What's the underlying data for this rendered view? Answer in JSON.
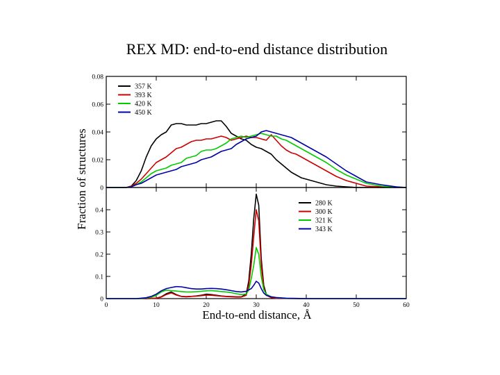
{
  "page": {
    "title": "REX MD: end-to-end distance distribution"
  },
  "chart_data": [
    {
      "type": "line",
      "xlabel": "End-to-end distance, Å",
      "ylabel": "Fraction of structures",
      "xlim": [
        0,
        60
      ],
      "ylim": [
        0,
        0.08
      ],
      "xticks": [
        "0",
        "10",
        "20",
        "30",
        "40",
        "50",
        "60"
      ],
      "yticks": [
        "0",
        "0.02",
        "0.04",
        "0.06",
        "0.08"
      ],
      "grid": false,
      "legend_position": "top-left",
      "series": [
        {
          "name": "357 K",
          "color": "#000000",
          "x": [
            0,
            4,
            5,
            6,
            7,
            8,
            9,
            10,
            11,
            12,
            13,
            14,
            15,
            16,
            17,
            18,
            19,
            20,
            21,
            22,
            23,
            24,
            25,
            26,
            27,
            28,
            29,
            30,
            31,
            32,
            33,
            34,
            35,
            36,
            37,
            38,
            39,
            40,
            42,
            44,
            46,
            48,
            50,
            55,
            60
          ],
          "y": [
            0,
            0,
            0.001,
            0.005,
            0.012,
            0.022,
            0.03,
            0.035,
            0.038,
            0.04,
            0.045,
            0.046,
            0.046,
            0.045,
            0.045,
            0.045,
            0.046,
            0.046,
            0.047,
            0.048,
            0.048,
            0.044,
            0.039,
            0.037,
            0.035,
            0.034,
            0.031,
            0.029,
            0.028,
            0.026,
            0.024,
            0.02,
            0.017,
            0.014,
            0.011,
            0.009,
            0.007,
            0.006,
            0.004,
            0.002,
            0.001,
            0.0005,
            0,
            0,
            0
          ]
        },
        {
          "name": "393 K",
          "color": "#cc0000",
          "x": [
            0,
            4,
            5,
            6,
            7,
            8,
            9,
            10,
            11,
            12,
            13,
            14,
            15,
            16,
            17,
            18,
            19,
            20,
            21,
            22,
            23,
            24,
            25,
            26,
            27,
            28,
            29,
            30,
            31,
            32,
            33,
            34,
            35,
            36,
            37,
            38,
            39,
            40,
            42,
            44,
            46,
            48,
            50,
            52,
            55,
            60
          ],
          "y": [
            0,
            0,
            0.001,
            0.003,
            0.006,
            0.01,
            0.014,
            0.018,
            0.02,
            0.022,
            0.025,
            0.028,
            0.029,
            0.031,
            0.033,
            0.034,
            0.034,
            0.035,
            0.035,
            0.036,
            0.037,
            0.036,
            0.034,
            0.035,
            0.036,
            0.037,
            0.036,
            0.036,
            0.035,
            0.034,
            0.038,
            0.034,
            0.03,
            0.027,
            0.025,
            0.024,
            0.022,
            0.02,
            0.016,
            0.012,
            0.008,
            0.005,
            0.003,
            0.001,
            0.0005,
            0
          ]
        },
        {
          "name": "420 K",
          "color": "#00cc00",
          "x": [
            0,
            4,
            5,
            6,
            7,
            8,
            9,
            10,
            11,
            12,
            13,
            14,
            15,
            16,
            17,
            18,
            19,
            20,
            21,
            22,
            23,
            24,
            25,
            26,
            27,
            28,
            29,
            30,
            31,
            32,
            33,
            34,
            35,
            36,
            37,
            38,
            39,
            40,
            42,
            44,
            46,
            48,
            50,
            52,
            55,
            58,
            60
          ],
          "y": [
            0,
            0,
            0.0005,
            0.002,
            0.004,
            0.007,
            0.01,
            0.012,
            0.013,
            0.014,
            0.016,
            0.017,
            0.018,
            0.021,
            0.022,
            0.023,
            0.026,
            0.027,
            0.027,
            0.028,
            0.03,
            0.032,
            0.035,
            0.036,
            0.037,
            0.036,
            0.037,
            0.038,
            0.039,
            0.038,
            0.037,
            0.037,
            0.035,
            0.034,
            0.032,
            0.03,
            0.028,
            0.026,
            0.022,
            0.018,
            0.013,
            0.009,
            0.006,
            0.003,
            0.001,
            0.0002,
            0
          ]
        },
        {
          "name": "450 K",
          "color": "#0000aa",
          "x": [
            0,
            4,
            5,
            6,
            7,
            8,
            9,
            10,
            11,
            12,
            13,
            14,
            15,
            16,
            17,
            18,
            19,
            20,
            21,
            22,
            23,
            24,
            25,
            26,
            27,
            28,
            29,
            30,
            31,
            32,
            33,
            34,
            35,
            36,
            37,
            38,
            39,
            40,
            42,
            44,
            46,
            48,
            50,
            52,
            55,
            58,
            60
          ],
          "y": [
            0,
            0,
            0.0005,
            0.002,
            0.003,
            0.005,
            0.007,
            0.009,
            0.01,
            0.011,
            0.012,
            0.013,
            0.015,
            0.016,
            0.017,
            0.018,
            0.02,
            0.021,
            0.022,
            0.024,
            0.026,
            0.027,
            0.028,
            0.031,
            0.033,
            0.035,
            0.036,
            0.037,
            0.04,
            0.041,
            0.04,
            0.039,
            0.038,
            0.037,
            0.036,
            0.034,
            0.032,
            0.03,
            0.026,
            0.022,
            0.017,
            0.012,
            0.008,
            0.004,
            0.002,
            0.0005,
            0
          ]
        }
      ]
    },
    {
      "type": "line",
      "xlabel": "End-to-end distance, Å",
      "ylabel": "Fraction of structures",
      "xlim": [
        0,
        60
      ],
      "ylim": [
        0,
        0.5
      ],
      "xticks": [
        "0",
        "10",
        "20",
        "30",
        "40",
        "50",
        "60"
      ],
      "yticks": [
        "0",
        "0.1",
        "0.2",
        "0.3",
        "0.4"
      ],
      "grid": false,
      "legend_position": "top-right",
      "series": [
        {
          "name": "280 K",
          "color": "#000000",
          "x": [
            0,
            8,
            10,
            11,
            12,
            13,
            14,
            15,
            16,
            17,
            18,
            19,
            20,
            21,
            22,
            23,
            24,
            25,
            26,
            27,
            28,
            28.5,
            29,
            29.5,
            30,
            30.5,
            31,
            31.5,
            32,
            33,
            34,
            40,
            60
          ],
          "y": [
            0,
            0,
            0.002,
            0.008,
            0.022,
            0.03,
            0.018,
            0.01,
            0.008,
            0.01,
            0.012,
            0.015,
            0.02,
            0.018,
            0.015,
            0.012,
            0.01,
            0.009,
            0.008,
            0.008,
            0.02,
            0.08,
            0.2,
            0.36,
            0.47,
            0.42,
            0.18,
            0.06,
            0.02,
            0.005,
            0.001,
            0,
            0
          ]
        },
        {
          "name": "300 K",
          "color": "#cc0000",
          "x": [
            0,
            8,
            10,
            11,
            12,
            13,
            14,
            15,
            16,
            17,
            18,
            19,
            20,
            21,
            22,
            23,
            24,
            25,
            26,
            27,
            28,
            28.5,
            29,
            29.5,
            30,
            30.5,
            31,
            31.5,
            32,
            33,
            34,
            40,
            60
          ],
          "y": [
            0,
            0,
            0.002,
            0.007,
            0.018,
            0.026,
            0.016,
            0.01,
            0.009,
            0.01,
            0.011,
            0.013,
            0.016,
            0.015,
            0.013,
            0.011,
            0.009,
            0.008,
            0.007,
            0.007,
            0.015,
            0.06,
            0.15,
            0.28,
            0.4,
            0.35,
            0.15,
            0.05,
            0.015,
            0.004,
            0.001,
            0,
            0
          ]
        },
        {
          "name": "321 K",
          "color": "#00cc00",
          "x": [
            0,
            7,
            9,
            10,
            11,
            12,
            13,
            14,
            15,
            16,
            17,
            18,
            19,
            20,
            21,
            22,
            23,
            24,
            25,
            26,
            27,
            28,
            28.5,
            29,
            29.5,
            30,
            30.5,
            31,
            31.5,
            32,
            33,
            34,
            36,
            40,
            60
          ],
          "y": [
            0,
            0,
            0.006,
            0.015,
            0.03,
            0.038,
            0.036,
            0.034,
            0.032,
            0.03,
            0.03,
            0.031,
            0.033,
            0.035,
            0.036,
            0.034,
            0.032,
            0.03,
            0.027,
            0.022,
            0.018,
            0.02,
            0.04,
            0.09,
            0.15,
            0.23,
            0.2,
            0.1,
            0.04,
            0.02,
            0.008,
            0.004,
            0.001,
            0,
            0
          ]
        },
        {
          "name": "343 K",
          "color": "#0000aa",
          "x": [
            0,
            6,
            8,
            9,
            10,
            11,
            12,
            13,
            14,
            15,
            16,
            17,
            18,
            19,
            20,
            21,
            22,
            23,
            24,
            25,
            26,
            27,
            28,
            29,
            29.5,
            30,
            30.5,
            31,
            31.5,
            32,
            33,
            34,
            36,
            38,
            40,
            60
          ],
          "y": [
            0,
            0,
            0.004,
            0.01,
            0.02,
            0.035,
            0.045,
            0.05,
            0.054,
            0.053,
            0.049,
            0.045,
            0.043,
            0.043,
            0.045,
            0.046,
            0.045,
            0.043,
            0.04,
            0.036,
            0.032,
            0.03,
            0.033,
            0.045,
            0.06,
            0.078,
            0.07,
            0.045,
            0.025,
            0.015,
            0.008,
            0.005,
            0.002,
            0.001,
            0,
            0
          ]
        }
      ]
    }
  ]
}
